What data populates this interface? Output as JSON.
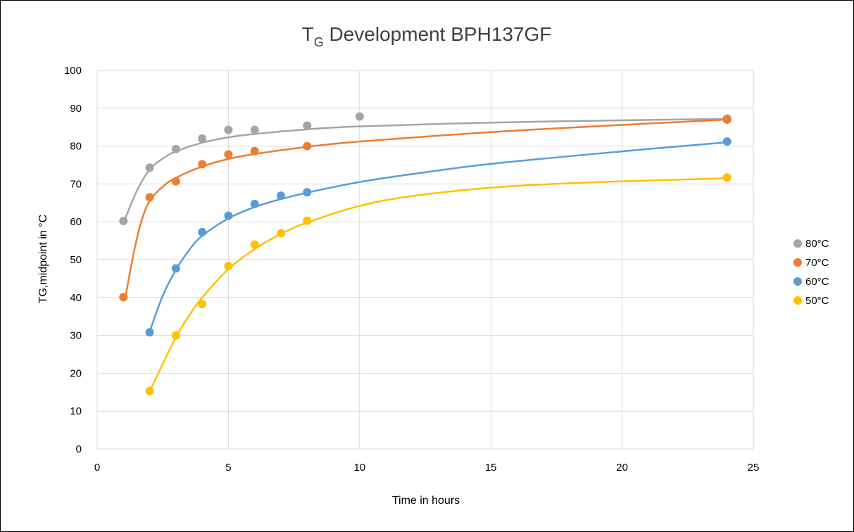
{
  "chart_data": {
    "type": "scatter",
    "title": {
      "main": "T",
      "sub": "G",
      "rest": " Development BPH137GF"
    },
    "xlabel": "Time in hours",
    "ylabel": "TG,midpoint in °C",
    "xlim": [
      0,
      25
    ],
    "ylim": [
      0,
      100
    ],
    "xticks": [
      0,
      5,
      10,
      15,
      20,
      25
    ],
    "yticks": [
      0,
      10,
      20,
      30,
      40,
      50,
      60,
      70,
      80,
      90,
      100
    ],
    "grid": true,
    "legend_position": "right",
    "trendlines": true,
    "series": [
      {
        "name": "80°C",
        "color": "#a5a5a5",
        "x": [
          1,
          2,
          3,
          4,
          5,
          6,
          8,
          10,
          24
        ],
        "y": [
          60.2,
          74.3,
          79.2,
          82.0,
          84.3,
          84.3,
          85.4,
          87.8,
          87.3
        ],
        "trend": [
          [
            1.05,
            60.5
          ],
          [
            1.5,
            68
          ],
          [
            2,
            73.8
          ],
          [
            2.5,
            76.7
          ],
          [
            3,
            78.6
          ],
          [
            4,
            80.9
          ],
          [
            5,
            82.3
          ],
          [
            6,
            83.2
          ],
          [
            8,
            84.4
          ],
          [
            10,
            85.2
          ],
          [
            15,
            86.2
          ],
          [
            20,
            86.8
          ],
          [
            24,
            87.2
          ]
        ]
      },
      {
        "name": "70°C",
        "color": "#ed7d31",
        "x": [
          1,
          2,
          3,
          4,
          5,
          6,
          8,
          24
        ],
        "y": [
          40.1,
          66.5,
          70.7,
          75.2,
          77.8,
          78.7,
          80.0,
          87.0
        ],
        "trend": [
          [
            1.1,
            41
          ],
          [
            1.4,
            52
          ],
          [
            1.7,
            60.5
          ],
          [
            2,
            65.5
          ],
          [
            2.5,
            69.3
          ],
          [
            3,
            71.6
          ],
          [
            4,
            74.6
          ],
          [
            5,
            76.6
          ],
          [
            6,
            77.9
          ],
          [
            8,
            79.8
          ],
          [
            10,
            81.2
          ],
          [
            15,
            83.7
          ],
          [
            20,
            85.6
          ],
          [
            24,
            87.0
          ]
        ]
      },
      {
        "name": "60°C",
        "color": "#5b9bd5",
        "x": [
          2,
          3,
          4,
          5,
          6,
          7,
          8,
          24
        ],
        "y": [
          30.8,
          47.7,
          57.3,
          61.6,
          64.7,
          66.9,
          67.8,
          81.2
        ],
        "trend": [
          [
            2,
            31
          ],
          [
            2.5,
            40.5
          ],
          [
            3,
            47.3
          ],
          [
            3.5,
            52.5
          ],
          [
            4,
            56.3
          ],
          [
            5,
            60.9
          ],
          [
            6,
            63.9
          ],
          [
            7,
            66.0
          ],
          [
            8,
            67.7
          ],
          [
            10,
            70.5
          ],
          [
            12,
            72.6
          ],
          [
            15,
            75.3
          ],
          [
            20,
            78.6
          ],
          [
            24,
            81.0
          ]
        ]
      },
      {
        "name": "50°C",
        "color": "#ffc000",
        "x": [
          2,
          3,
          4,
          5,
          6,
          7,
          8,
          24
        ],
        "y": [
          15.3,
          30.0,
          38.3,
          48.3,
          54.0,
          57.0,
          60.3,
          71.7
        ],
        "trend": [
          [
            2,
            15.2
          ],
          [
            2.5,
            22.5
          ],
          [
            3,
            29.5
          ],
          [
            3.5,
            35.2
          ],
          [
            4,
            40
          ],
          [
            5,
            47.5
          ],
          [
            6,
            52.8
          ],
          [
            7,
            56.8
          ],
          [
            8,
            59.8
          ],
          [
            10,
            64.2
          ],
          [
            12,
            66.8
          ],
          [
            15,
            69.0
          ],
          [
            18,
            70.2
          ],
          [
            21,
            70.9
          ],
          [
            24,
            71.5
          ]
        ]
      }
    ]
  }
}
